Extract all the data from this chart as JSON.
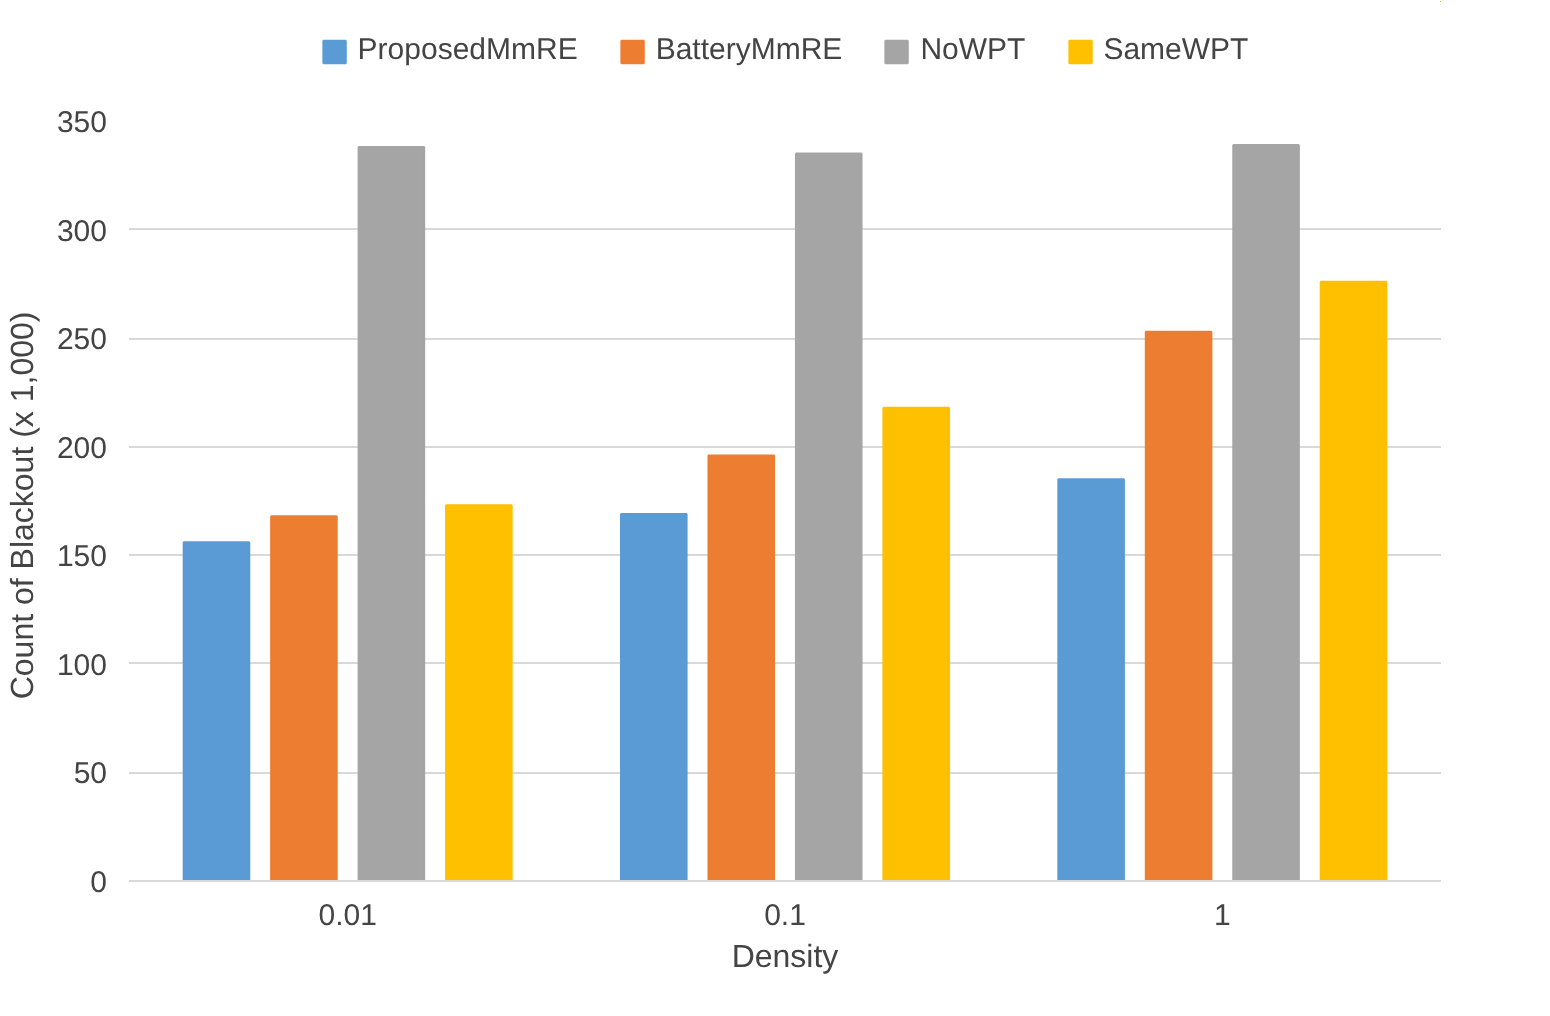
{
  "chart_data": {
    "type": "bar",
    "xlabel": "Density",
    "ylabel": "Count of Blackout  (x 1,000)",
    "categories": [
      "0.01",
      "0.1",
      "1"
    ],
    "series": [
      {
        "name": "ProposedMmRE",
        "color": "#5b9bd5",
        "values": [
          156,
          169,
          185
        ]
      },
      {
        "name": "BatteryMmRE",
        "color": "#ed7d31",
        "values": [
          168,
          196,
          253
        ]
      },
      {
        "name": "NoWPT",
        "color": "#a5a5a5",
        "values": [
          338,
          335,
          339
        ]
      },
      {
        "name": "SameWPT",
        "color": "#ffc000",
        "values": [
          173,
          218,
          276
        ]
      }
    ],
    "ylim": [
      0,
      350
    ],
    "yticks": [
      0,
      50,
      100,
      150,
      200,
      250,
      300,
      350
    ],
    "grid": "y",
    "legend": "top"
  }
}
